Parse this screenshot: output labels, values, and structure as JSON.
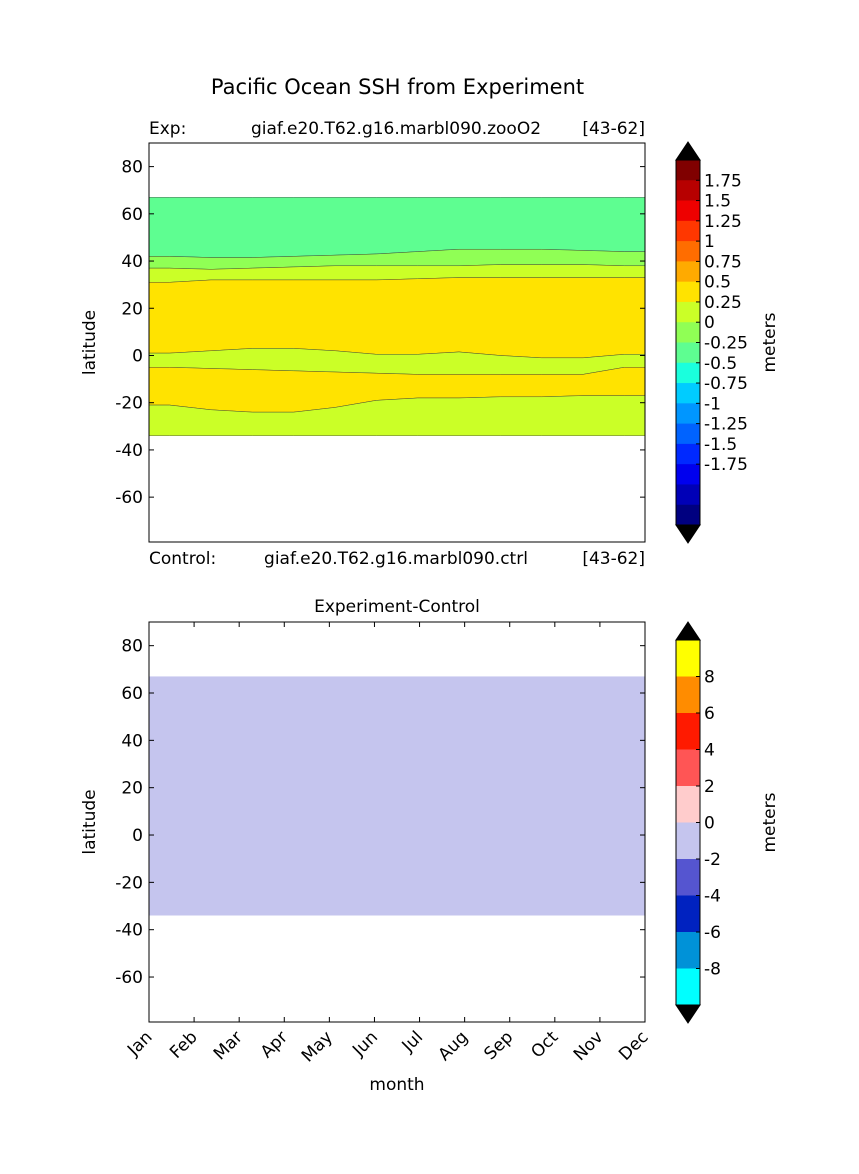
{
  "figure_title": "Pacific Ocean SSH from Experiment",
  "chart_data": [
    {
      "type": "contour",
      "name": "experiment-panel",
      "header": {
        "left": "Exp:",
        "center": "giaf.e20.T62.g16.marbl090.zooO2",
        "right": "[43-62]"
      },
      "footer": {
        "left": "Control:",
        "center": "giaf.e20.T62.g16.marbl090.ctrl",
        "right": "[43-62]"
      },
      "ylabel": "latitude",
      "ylim": [
        -79,
        90
      ],
      "yticks": [
        80,
        60,
        40,
        20,
        0,
        -20,
        -40,
        -60
      ],
      "ytick_labels": [
        "80",
        "60",
        "40",
        "20",
        "0",
        "-20",
        "-40",
        "-60"
      ],
      "x_months": 12,
      "band_colors": {
        "green": "#5efe91",
        "lightgreen": "#90ff55",
        "lime": "#cbff27",
        "yellow": "#ffe300"
      },
      "bands": [
        {
          "color": "green",
          "top": [
            67,
            67,
            67,
            67,
            67,
            67,
            67,
            67,
            67,
            67,
            67,
            67
          ],
          "bottom": [
            42,
            41.5,
            41.5,
            42,
            42.5,
            43,
            44,
            45,
            45,
            45,
            44.5,
            44
          ]
        },
        {
          "color": "lightgreen",
          "top": [
            42,
            41.5,
            41.5,
            42,
            42.5,
            43,
            44,
            45,
            45,
            45,
            44.5,
            44
          ],
          "bottom": [
            37,
            36.5,
            37,
            37.5,
            38,
            38,
            38,
            38,
            38.5,
            38.5,
            38.5,
            38
          ]
        },
        {
          "color": "lime",
          "top": [
            37,
            36.5,
            37,
            37.5,
            38,
            38,
            38,
            38,
            38.5,
            38.5,
            38.5,
            38
          ],
          "bottom": [
            31,
            32,
            32,
            32,
            32,
            32,
            32.5,
            33,
            33,
            33,
            33,
            33
          ]
        },
        {
          "color": "yellow",
          "top": [
            31,
            32,
            32,
            32,
            32,
            32,
            32.5,
            33,
            33,
            33,
            33,
            33
          ],
          "bottom": [
            1,
            2,
            3,
            3,
            2,
            0.5,
            0.5,
            1.5,
            0,
            -1,
            -1,
            0.5
          ]
        },
        {
          "color": "lime",
          "top": [
            1,
            2,
            3,
            3,
            2,
            0.5,
            0.5,
            1.5,
            0,
            -1,
            -1,
            0.5
          ],
          "bottom": [
            -5,
            -5.5,
            -6,
            -6.5,
            -7,
            -7.5,
            -8,
            -8,
            -8,
            -8,
            -8,
            -5
          ]
        },
        {
          "color": "yellow",
          "top": [
            -5,
            -5.5,
            -6,
            -6.5,
            -7,
            -7.5,
            -8,
            -8,
            -8,
            -8,
            -8,
            -5
          ],
          "bottom": [
            -21,
            -23,
            -24,
            -24,
            -22,
            -19,
            -18,
            -18,
            -17.5,
            -17.5,
            -17,
            -17
          ]
        },
        {
          "color": "lime",
          "top": [
            -21,
            -23,
            -24,
            -24,
            -22,
            -19,
            -18,
            -18,
            -17.5,
            -17.5,
            -17,
            -17
          ],
          "bottom": [
            -34,
            -34,
            -34,
            -34,
            -34,
            -34,
            -34,
            -34,
            -34,
            -34,
            -34,
            -34
          ]
        }
      ],
      "colorbar": {
        "label": "meters",
        "extend": "both",
        "extend_color": "#000000",
        "colors": [
          "#000080",
          "#0000b7",
          "#0000ee",
          "#0029ff",
          "#0063ff",
          "#0096ff",
          "#00ccff",
          "#1affdd",
          "#5efe91",
          "#90ff55",
          "#cbff27",
          "#ffe300",
          "#ffaa00",
          "#ff6d00",
          "#ff3700",
          "#ee0000",
          "#b70000",
          "#800000"
        ],
        "tick_labels": [
          "1.75",
          "1.5",
          "1.25",
          "1",
          "0.75",
          "0.5",
          "0.25",
          "0",
          "-0.25",
          "-0.5",
          "-0.75",
          "-1",
          "-1.25",
          "-1.5",
          "-1.75"
        ]
      }
    },
    {
      "type": "contour",
      "name": "difference-panel",
      "title": "Experiment-Control",
      "ylabel": "latitude",
      "xlabel": "month",
      "ylim": [
        -79,
        90
      ],
      "yticks": [
        80,
        60,
        40,
        20,
        0,
        -20,
        -40,
        -60
      ],
      "ytick_labels": [
        "80",
        "60",
        "40",
        "20",
        "0",
        "-20",
        "-40",
        "-60"
      ],
      "categories": [
        "Jan",
        "Feb",
        "Mar",
        "Apr",
        "May",
        "Jun",
        "Jul",
        "Aug",
        "Sep",
        "Oct",
        "Nov",
        "Dec"
      ],
      "fill": {
        "color": "#c5c5ee",
        "lat_top": 67,
        "lat_bottom": -34,
        "value_range": [
          -2,
          0
        ]
      },
      "colorbar": {
        "label": "meters",
        "extend": "both",
        "extend_color": "#000000",
        "colors": [
          "#00ffff",
          "#0092d8",
          "#0022c0",
          "#5555d0",
          "#c5c5ee",
          "#ffcccc",
          "#ff5555",
          "#ff1a00",
          "#ff8c00",
          "#ffff00"
        ],
        "tick_labels": [
          "8",
          "6",
          "4",
          "2",
          "0",
          "-2",
          "-4",
          "-6",
          "-8"
        ]
      }
    }
  ]
}
